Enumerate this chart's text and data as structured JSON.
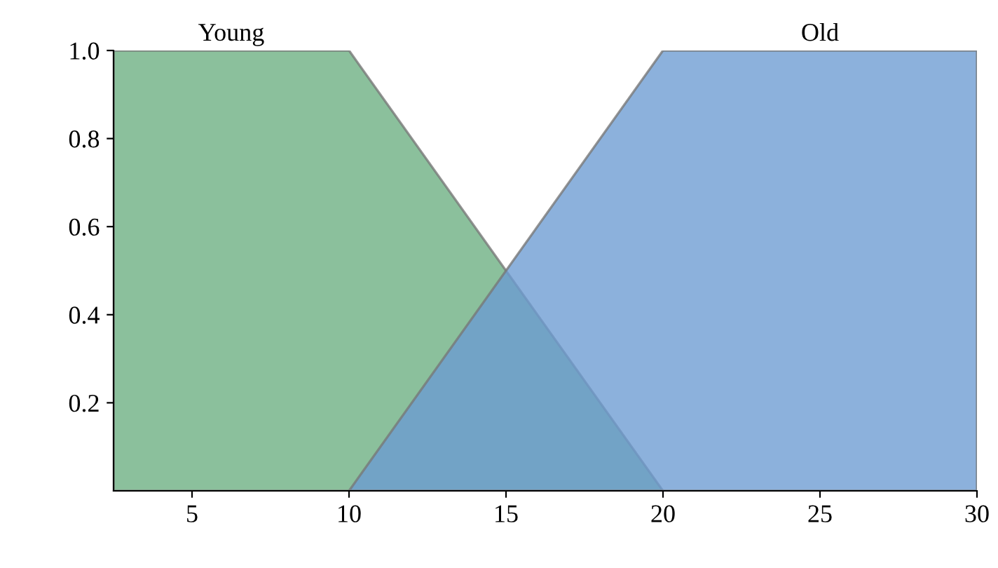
{
  "chart_data": {
    "type": "area",
    "series": [
      {
        "name": "Young",
        "color": "#6aae80",
        "x": [
          2.5,
          10,
          20
        ],
        "values": [
          1,
          1,
          0
        ]
      },
      {
        "name": "Old",
        "color": "#6b9bd2",
        "x": [
          10,
          20,
          30
        ],
        "values": [
          0,
          1,
          1
        ]
      }
    ],
    "xlim": [
      2.5,
      30
    ],
    "ylim": [
      0,
      1
    ],
    "xticks": [
      5,
      10,
      15,
      20,
      25,
      30
    ],
    "yticks": [
      {
        "value": 0.2,
        "label": "0.2"
      },
      {
        "value": 0.4,
        "label": "0.4"
      },
      {
        "value": 0.6,
        "label": "0.6"
      },
      {
        "value": 0.8,
        "label": "0.8"
      },
      {
        "value": 1.0,
        "label": "1.0"
      }
    ],
    "grid": false,
    "legend": false
  }
}
